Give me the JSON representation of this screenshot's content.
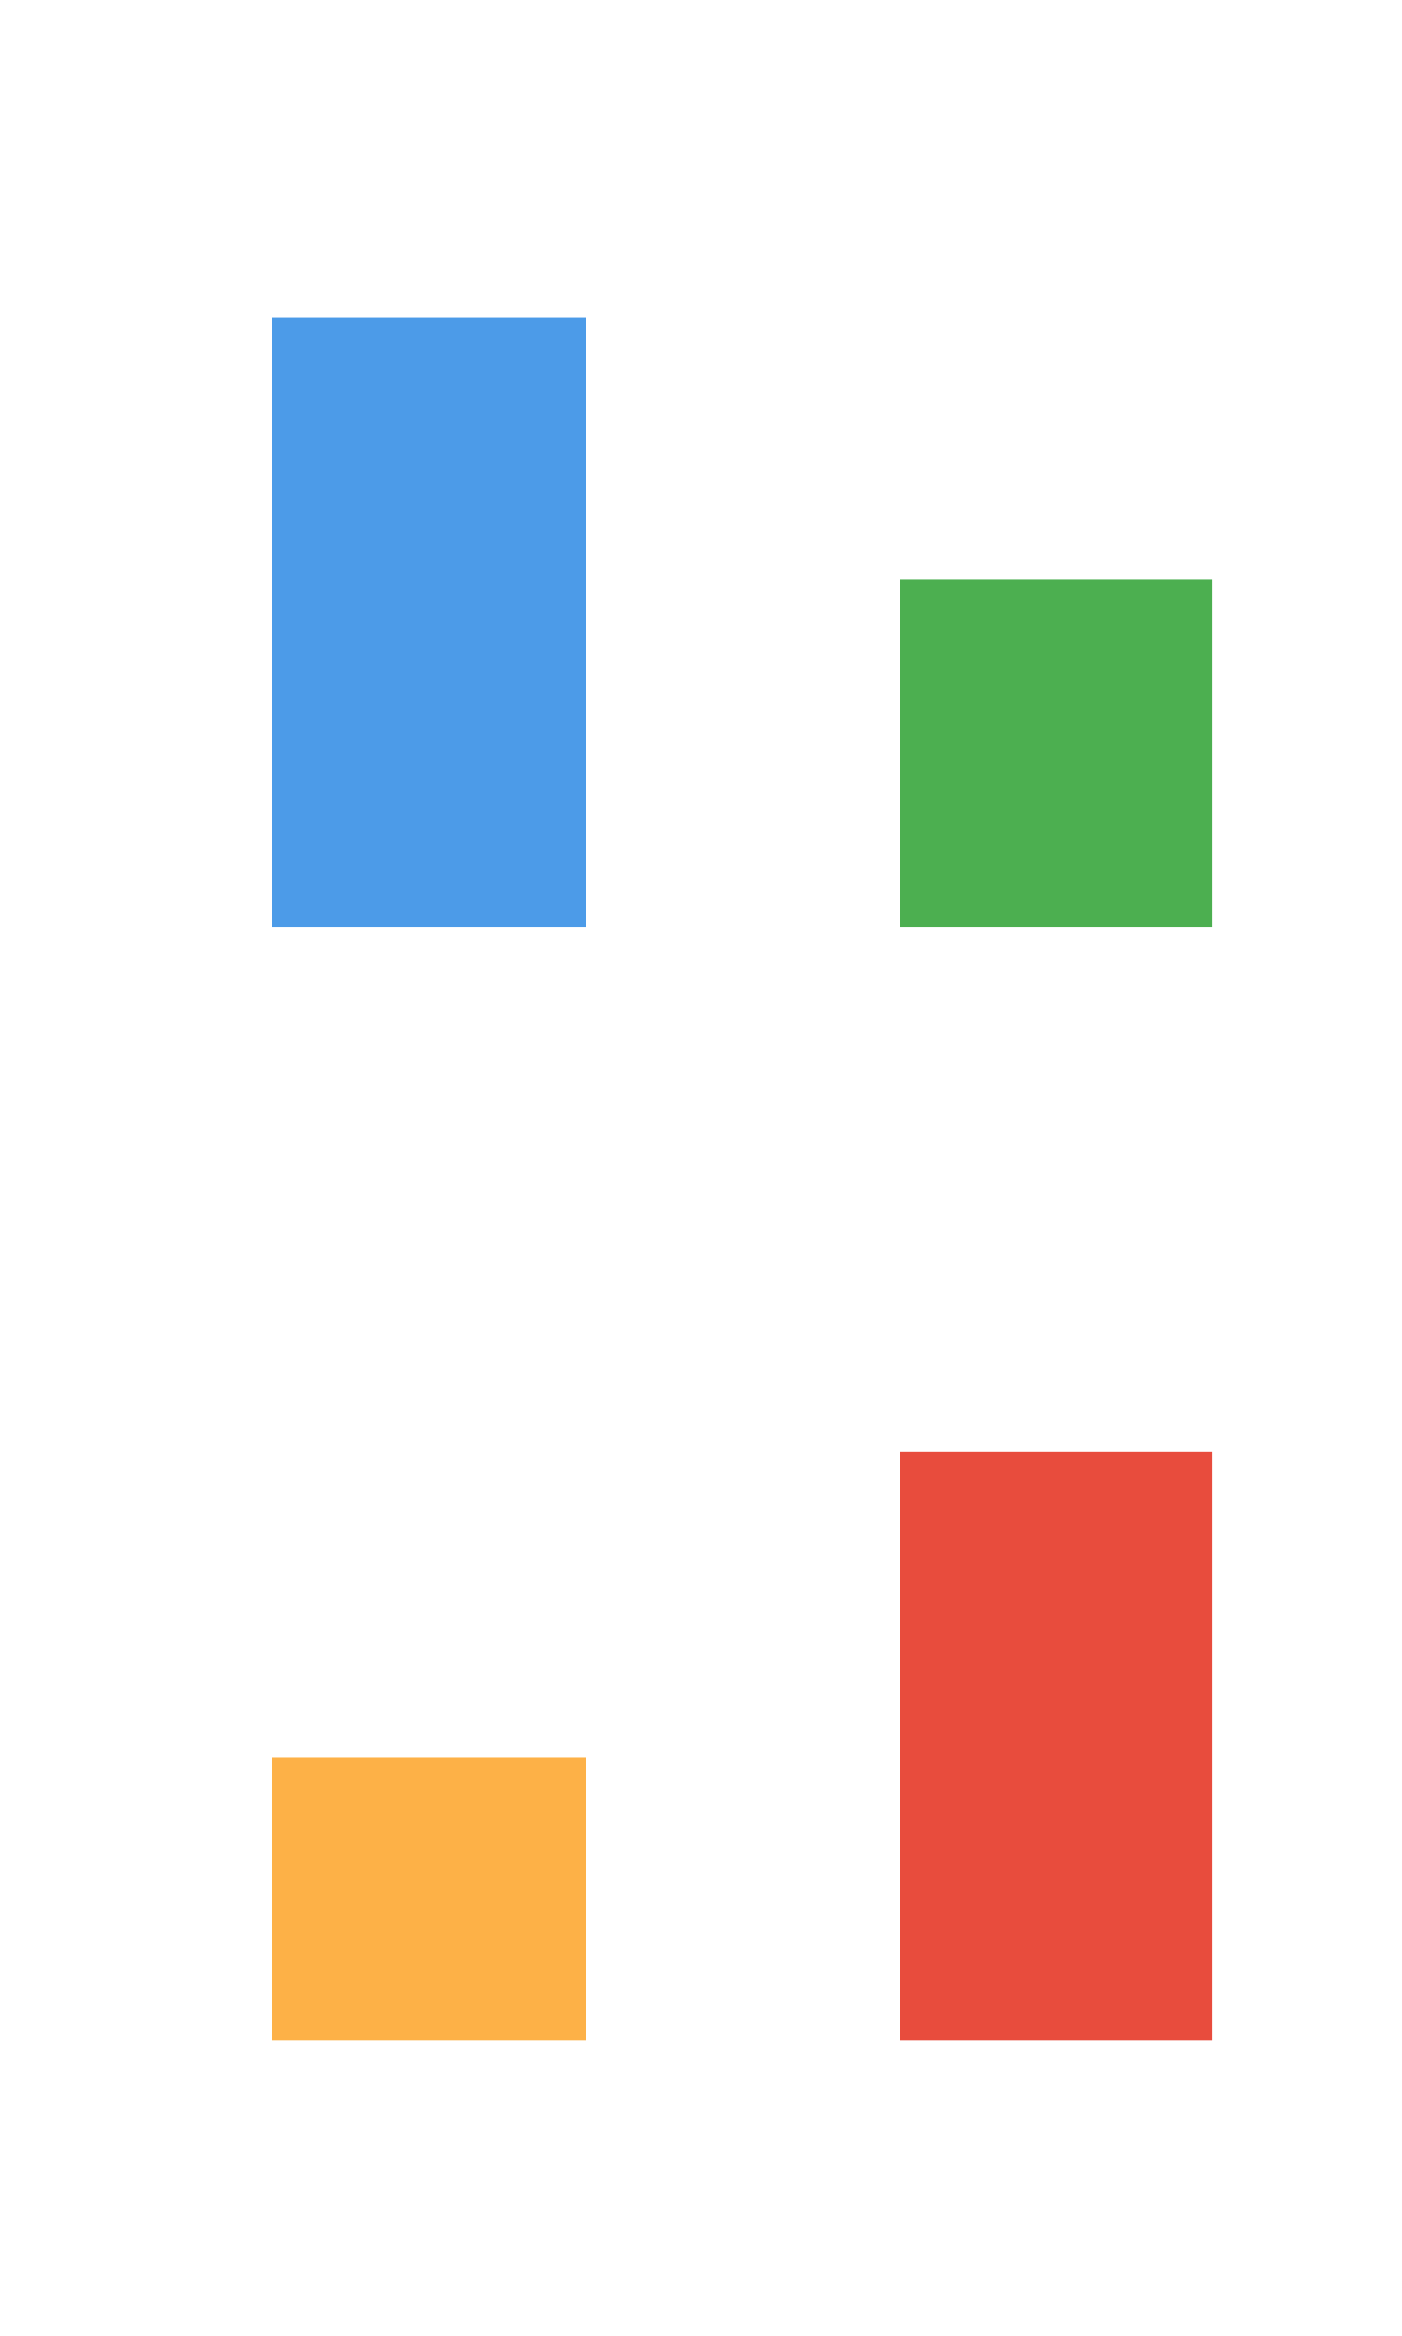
{
  "blocks": [
    {
      "color": "#4c9be8"
    },
    {
      "color": "#4caf50"
    },
    {
      "color": "#fdb147"
    },
    {
      "color": "#e84c3d"
    }
  ]
}
